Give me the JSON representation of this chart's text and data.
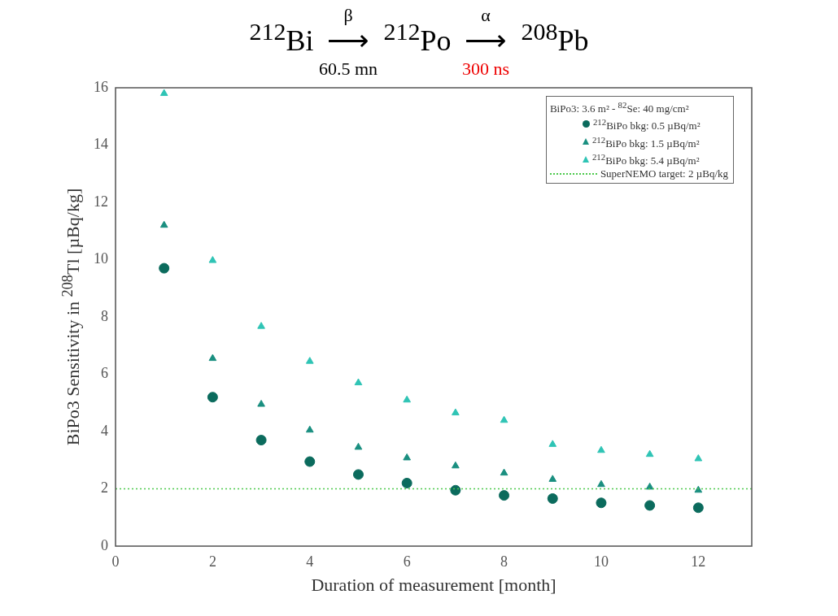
{
  "chart_data": {
    "type": "scatter",
    "title": "$^{212}$Bi ⟶ $^{212}$Po ⟶ $^{208}$Pb",
    "annotations": [
      "β",
      "60.5 mn",
      "α",
      "300 ns"
    ],
    "xlabel": "Duration of measurement [month]",
    "ylabel": "BiPo3 Sensitivity in $^{208}$Tl [µBq/kg]",
    "legend_title": "BiPo3: 3.6 m² - $^{82}$Se: 40 mg/cm²",
    "x": [
      1,
      2,
      3,
      4,
      5,
      6,
      7,
      8,
      9,
      10,
      11,
      12
    ],
    "series": [
      {
        "name": "$^{212}$BiPo bkg: 0.5 µBq/m²",
        "color": "#0b6b5d",
        "marker": "circle",
        "values": [
          9.7,
          5.2,
          3.7,
          2.95,
          2.5,
          2.2,
          1.95,
          1.77,
          1.66,
          1.51,
          1.42,
          1.34
        ]
      },
      {
        "name": "$^{212}$BiPo bkg: 1.5 µBq/m²",
        "color": "#1a8f80",
        "marker": "triangle",
        "values": [
          11.2,
          6.55,
          4.95,
          4.05,
          3.45,
          3.08,
          2.8,
          2.55,
          2.33,
          2.15,
          2.06,
          1.95
        ]
      },
      {
        "name": "$^{212}$BiPo bkg: 5.4 µBq/m²",
        "color": "#2fc4b5",
        "marker": "triangle",
        "values": [
          15.8,
          9.97,
          7.67,
          6.45,
          5.7,
          5.1,
          4.65,
          4.39,
          3.55,
          3.34,
          3.2,
          3.05
        ]
      }
    ],
    "ref_lines": [
      {
        "axis": "y",
        "value": 2,
        "label": "SuperNEMO target: 2 µBq/kg",
        "color": "#4cc94c",
        "line_style": "dotted"
      }
    ],
    "xlim": [
      0,
      13.1
    ],
    "xticks": [
      0,
      2,
      4,
      6,
      8,
      10,
      12
    ],
    "ylim": [
      0,
      16
    ],
    "yticks": [
      0,
      2,
      4,
      6,
      8,
      10,
      12,
      14,
      16
    ],
    "grid": false,
    "legend": "top right"
  }
}
